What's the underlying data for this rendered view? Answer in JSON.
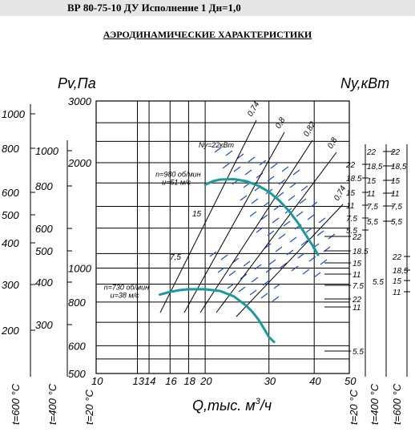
{
  "header": {
    "title": "ВР 80-75-10 ДУ Исполнение 1 Дн=1,0"
  },
  "page_title": "АЭРОДИНАМИЧЕСКИЕ ХАРАКТЕРИСТИКИ",
  "colors": {
    "curve": "#1a9a9a",
    "line": "#000000",
    "dash": "#1f4fbf",
    "header_bg": "#e6e6e6"
  },
  "chart_data": {
    "type": "line",
    "title": "АЭРОДИНАМИЧЕСКИЕ ХАРАКТЕРИСТИКИ",
    "xlabel": "Q,тыс. м³/ч",
    "xlabel_main": "Q,тыс. м",
    "xlabel_sup": "3",
    "xlabel_tail": "/ч",
    "ylabel_left": "Pv,Па",
    "ylabel_right": "Ny,кВт",
    "x_scale": "log",
    "xlim": [
      10,
      50
    ],
    "x_ticks": [
      10,
      13,
      14,
      16,
      18,
      20,
      30,
      40,
      50
    ],
    "y_scale": "log",
    "ylim": [
      500,
      3000
    ],
    "y_ticks_main": [
      500,
      600,
      800,
      1000,
      2000,
      3000
    ],
    "y_ticks_700": [
      300,
      400,
      500,
      600,
      800,
      1000
    ],
    "y_ticks_600": [
      200,
      300,
      400,
      500,
      600,
      800,
      1000
    ],
    "temperature_labels_left": [
      "t=600 °C",
      "t=400 °C",
      "t=20 °C"
    ],
    "temperature_labels_right": [
      "t=20 °C",
      "t=400 °C",
      "t=600 °C"
    ],
    "power_ticks_right": {
      "t20": [
        "22",
        "18.5",
        "15",
        "11",
        "7.5",
        "5.5"
      ],
      "t400": [
        "22",
        "18,5",
        "15",
        "11",
        "7,5",
        "5,5"
      ],
      "t600": [
        "22",
        "18,5",
        "15",
        "11",
        "7,5",
        "5,5"
      ]
    },
    "efficiency_labels": [
      "0,74",
      "0,8",
      "0,82",
      "0,8",
      "0,74"
    ],
    "power_annotation": "Ny=22кВт",
    "motor_label_980": "15",
    "motor_label_730": "7,5",
    "series": [
      {
        "name": "n=980 об/мин",
        "speed_label": "n=980 об/мин",
        "tip_label": "u=51 м/с",
        "x": [
          20,
          21,
          22,
          24,
          26,
          28,
          30,
          32,
          34,
          36,
          38,
          40,
          41
        ],
        "y": [
          1730,
          1770,
          1790,
          1795,
          1770,
          1720,
          1650,
          1560,
          1460,
          1350,
          1240,
          1140,
          1090
        ]
      },
      {
        "name": "n=730 об/мин",
        "speed_label": "n=730 об/мин",
        "tip_label": "u=38 м/с",
        "x": [
          15,
          16,
          17,
          18,
          20,
          22,
          24,
          26,
          27,
          28,
          29,
          30,
          31
        ],
        "y": [
          840,
          855,
          865,
          870,
          870,
          860,
          830,
          780,
          750,
          715,
          675,
          635,
          615
        ]
      }
    ],
    "power_marks_right": [
      {
        "label": "22",
        "q": 39.8,
        "p": 1320
      },
      {
        "label": "18.5",
        "q": 39.8,
        "p": 1180
      },
      {
        "label": "15",
        "q": 39.8,
        "p": 1060
      },
      {
        "label": "11",
        "q": 39.8,
        "p": 950
      },
      {
        "label": "7.5",
        "q": 39.8,
        "p": 860
      },
      {
        "label": "5.5",
        "q": 39.8,
        "p": 790
      },
      {
        "label": "22",
        "q": 39.8,
        "p": 740
      },
      {
        "label": "11",
        "q": 39.8,
        "p": 700
      },
      {
        "label": "5.5",
        "q": 39.8,
        "p": 560
      }
    ]
  }
}
